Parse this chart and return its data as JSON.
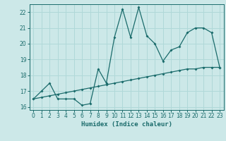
{
  "xlabel": "Humidex (Indice chaleur)",
  "bg_color": "#cce8e8",
  "line_color": "#1a6b6b",
  "grid_color": "#b0d8d8",
  "xlim": [
    -0.5,
    23.5
  ],
  "ylim": [
    15.8,
    22.5
  ],
  "yticks": [
    16,
    17,
    18,
    19,
    20,
    21,
    22
  ],
  "xticks": [
    0,
    1,
    2,
    3,
    4,
    5,
    6,
    7,
    8,
    9,
    10,
    11,
    12,
    13,
    14,
    15,
    16,
    17,
    18,
    19,
    20,
    21,
    22,
    23
  ],
  "series1_x": [
    0,
    1,
    2,
    3,
    4,
    5,
    6,
    7,
    8,
    9,
    10,
    11,
    12,
    13,
    14,
    15,
    16,
    17,
    18,
    19,
    20,
    21,
    22,
    23
  ],
  "series1_y": [
    16.5,
    17.0,
    17.5,
    16.5,
    16.5,
    16.5,
    16.1,
    16.2,
    18.4,
    17.5,
    20.4,
    22.2,
    20.4,
    22.3,
    20.5,
    20.0,
    18.9,
    19.6,
    19.8,
    20.7,
    21.0,
    21.0,
    20.7,
    18.5
  ],
  "series2_x": [
    0,
    1,
    2,
    3,
    4,
    5,
    6,
    7,
    8,
    9,
    10,
    11,
    12,
    13,
    14,
    15,
    16,
    17,
    18,
    19,
    20,
    21,
    22,
    23
  ],
  "series2_y": [
    16.5,
    16.6,
    16.7,
    16.8,
    16.9,
    17.0,
    17.1,
    17.2,
    17.3,
    17.4,
    17.5,
    17.6,
    17.7,
    17.8,
    17.9,
    18.0,
    18.1,
    18.2,
    18.3,
    18.4,
    18.4,
    18.5,
    18.5,
    18.5
  ]
}
